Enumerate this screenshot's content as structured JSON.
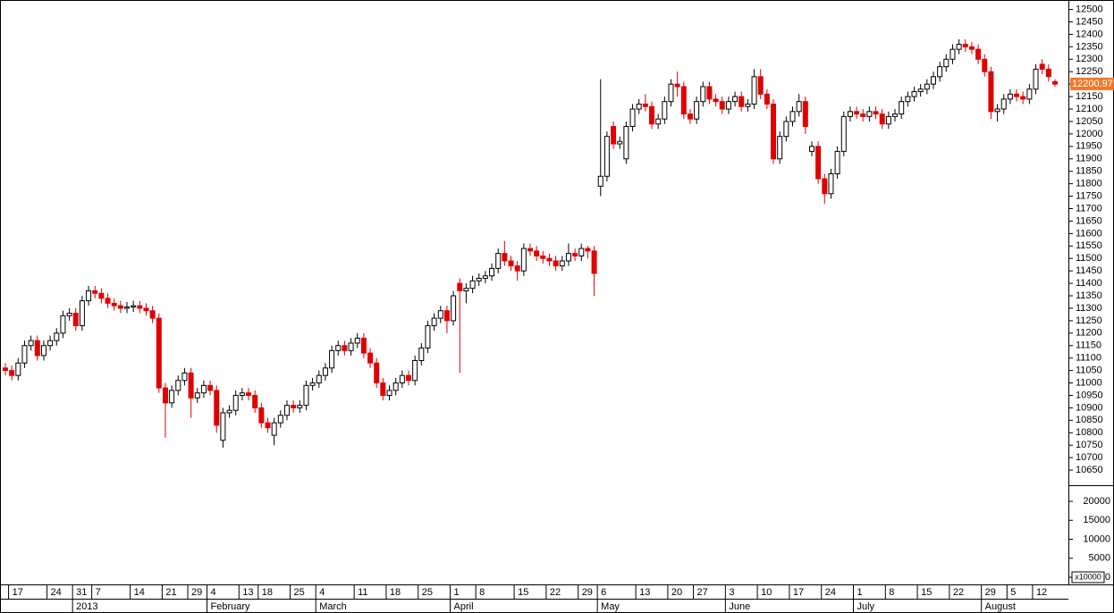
{
  "chart_data": {
    "type": "candlestick",
    "up_color": "#ffffff",
    "down_color": "#e00000",
    "last_color": "#f07828",
    "last_price": 12200.97,
    "ylim": [
      10600,
      12520
    ],
    "yticks": [
      12500,
      12450,
      12400,
      12350,
      12300,
      12250,
      12200,
      12150,
      12100,
      12050,
      12000,
      11950,
      11900,
      11850,
      11800,
      11750,
      11700,
      11650,
      11600,
      11550,
      11500,
      11450,
      11400,
      11350,
      11300,
      11250,
      11200,
      11150,
      11100,
      11050,
      11000,
      10950,
      10900,
      10850,
      10800,
      10750,
      10700,
      10650
    ],
    "volume_axis": {
      "label": "x10000",
      "ylim": [
        0,
        24000
      ],
      "yticks": [
        20000,
        15000,
        10000,
        5000,
        0
      ]
    },
    "categories": [
      null,
      "17",
      null,
      null,
      null,
      null,
      null,
      "24",
      null,
      null,
      null,
      "31",
      null,
      null,
      "7",
      null,
      null,
      null,
      null,
      null,
      "14",
      null,
      null,
      null,
      null,
      "21",
      null,
      null,
      null,
      "29",
      null,
      null,
      "4",
      null,
      null,
      null,
      null,
      "13",
      null,
      null,
      "18",
      null,
      null,
      null,
      null,
      "25",
      null,
      null,
      null,
      "4",
      null,
      null,
      null,
      null,
      null,
      "11",
      null,
      null,
      null,
      null,
      "18",
      null,
      null,
      null,
      null,
      "25",
      null,
      null,
      null,
      null,
      "1",
      null,
      null,
      null,
      "8",
      null,
      null,
      null,
      null,
      null,
      "15",
      null,
      null,
      null,
      null,
      "22",
      null,
      null,
      null,
      null,
      "29",
      null,
      null,
      "6",
      null,
      null,
      null,
      null,
      null,
      "13",
      null,
      null,
      null,
      null,
      "20",
      null,
      null,
      null,
      "27",
      null,
      null,
      null,
      null,
      "3",
      null,
      null,
      null,
      null,
      "10",
      null,
      null,
      null,
      null,
      "17",
      null,
      null,
      null,
      null,
      "24",
      null,
      null,
      null,
      null,
      "1",
      null,
      null,
      null,
      null,
      "8",
      null,
      null,
      null,
      null,
      "15",
      null,
      null,
      null,
      null,
      "22",
      null,
      null,
      null,
      null,
      "29",
      null,
      null,
      null,
      "5",
      null,
      null,
      null,
      "12",
      null,
      null,
      null
    ],
    "months": [
      null,
      null,
      null,
      null,
      null,
      null,
      null,
      null,
      null,
      null,
      null,
      "2013",
      null,
      null,
      null,
      null,
      null,
      null,
      null,
      null,
      null,
      null,
      null,
      null,
      null,
      null,
      null,
      null,
      null,
      null,
      null,
      null,
      "February",
      null,
      null,
      null,
      null,
      null,
      null,
      null,
      null,
      null,
      null,
      null,
      null,
      null,
      null,
      null,
      null,
      "March",
      null,
      null,
      null,
      null,
      null,
      null,
      null,
      null,
      null,
      null,
      null,
      null,
      null,
      null,
      null,
      null,
      null,
      null,
      null,
      null,
      "April",
      null,
      null,
      null,
      null,
      null,
      null,
      null,
      null,
      null,
      null,
      null,
      null,
      null,
      null,
      null,
      null,
      null,
      null,
      null,
      null,
      null,
      null,
      "May",
      null,
      null,
      null,
      null,
      null,
      null,
      null,
      null,
      null,
      null,
      null,
      null,
      null,
      null,
      null,
      null,
      null,
      null,
      null,
      "June",
      null,
      null,
      null,
      null,
      null,
      null,
      null,
      null,
      null,
      null,
      null,
      null,
      null,
      null,
      null,
      null,
      null,
      null,
      null,
      "July",
      null,
      null,
      null,
      null,
      null,
      null,
      null,
      null,
      null,
      null,
      null,
      null,
      null,
      null,
      null,
      null,
      null,
      null,
      null,
      "August",
      null,
      null,
      null,
      null,
      null,
      null,
      null,
      null,
      null,
      null,
      null
    ],
    "open": [
      11060,
      11050,
      11030,
      11080,
      11150,
      11170,
      11110,
      11150,
      11170,
      11200,
      11270,
      11280,
      11230,
      11330,
      11370,
      11360,
      11340,
      11320,
      11310,
      11300,
      11305,
      11310,
      11300,
      11290,
      11260,
      10980,
      10920,
      10970,
      11010,
      11040,
      10940,
      10960,
      10990,
      10970,
      10770,
      10880,
      10890,
      10950,
      10960,
      10950,
      10900,
      10840,
      10790,
      10840,
      10870,
      10910,
      10900,
      10910,
      10990,
      11000,
      11030,
      11060,
      11130,
      11150,
      11130,
      11160,
      11180,
      11120,
      11080,
      11000,
      10950,
      10970,
      11000,
      11030,
      11010,
      11090,
      11140,
      11230,
      11260,
      11290,
      11250,
      11400,
      11370,
      11380,
      11410,
      11420,
      11430,
      11460,
      11520,
      11490,
      11470,
      11450,
      11540,
      11530,
      11510,
      11500,
      11490,
      11470,
      11490,
      11520,
      11510,
      11540,
      11530,
      11790,
      11830,
      12030,
      11960,
      11900,
      12030,
      12100,
      12120,
      12110,
      12040,
      12060,
      12130,
      12200,
      12190,
      12080,
      12060,
      12130,
      12190,
      12140,
      12130,
      12100,
      12130,
      12150,
      12110,
      12120,
      12230,
      12160,
      12120,
      11900,
      11990,
      12050,
      12090,
      12130,
      11930,
      11950,
      11820,
      11760,
      11840,
      11930,
      12070,
      12090,
      12080,
      12070,
      12090,
      12080,
      12040,
      12070,
      12080,
      12130,
      12150,
      12170,
      12180,
      12200,
      12230,
      12270,
      12300,
      12340,
      12360,
      12350,
      12340,
      12300,
      12250,
      12090,
      12100,
      12140,
      12160,
      12150,
      12140,
      12180,
      12280,
      12260,
      12210
    ],
    "high": [
      11080,
      11070,
      11100,
      11170,
      11190,
      11190,
      11170,
      11190,
      11220,
      11290,
      11300,
      11300,
      11350,
      11390,
      11390,
      11380,
      11360,
      11340,
      11330,
      11325,
      11330,
      11330,
      11320,
      11310,
      11280,
      11000,
      10990,
      11030,
      11060,
      11060,
      10980,
      11010,
      11010,
      10990,
      10900,
      10910,
      10970,
      10980,
      10980,
      10970,
      10920,
      10860,
      10860,
      10890,
      10930,
      10930,
      10930,
      11010,
      11020,
      11050,
      11080,
      11150,
      11170,
      11170,
      11180,
      11200,
      11200,
      11140,
      11100,
      11020,
      10990,
      11020,
      11050,
      11050,
      11110,
      11160,
      11250,
      11280,
      11310,
      11310,
      11370,
      11420,
      11400,
      11430,
      11440,
      11450,
      11480,
      11540,
      11570,
      11510,
      11490,
      11560,
      11560,
      11550,
      11530,
      11520,
      11510,
      11510,
      11560,
      11540,
      11560,
      11550,
      11550,
      12220,
      12010,
      12050,
      11990,
      12050,
      12120,
      12140,
      12160,
      12130,
      12080,
      12150,
      12220,
      12250,
      12210,
      12100,
      12150,
      12210,
      12210,
      12160,
      12150,
      12150,
      12170,
      12170,
      12140,
      12260,
      12260,
      12180,
      12140,
      12010,
      12070,
      12110,
      12160,
      12150,
      11970,
      11970,
      11840,
      11860,
      11950,
      12090,
      12110,
      12110,
      12100,
      12110,
      12110,
      12100,
      12090,
      12100,
      12150,
      12170,
      12190,
      12200,
      12220,
      12250,
      12290,
      12320,
      12360,
      12380,
      12380,
      12370,
      12360,
      12320,
      12270,
      12120,
      12160,
      12180,
      12180,
      12170,
      12200,
      12280,
      12300,
      12280,
      12220
    ],
    "low": [
      11030,
      11010,
      11010,
      11060,
      11130,
      11090,
      11090,
      11130,
      11150,
      11180,
      11250,
      11210,
      11210,
      11310,
      11340,
      11320,
      11300,
      11290,
      11280,
      11280,
      11285,
      11280,
      11270,
      11240,
      10960,
      10780,
      10900,
      10950,
      10990,
      10860,
      10920,
      10940,
      10950,
      10800,
      10740,
      10860,
      10870,
      10930,
      10930,
      10880,
      10820,
      10800,
      10750,
      10820,
      10850,
      10880,
      10880,
      10890,
      10970,
      10980,
      11010,
      11040,
      11110,
      11110,
      11110,
      11140,
      11100,
      11060,
      10980,
      10930,
      10930,
      10950,
      10980,
      10990,
      10990,
      11070,
      11120,
      11210,
      11240,
      11200,
      11230,
      11040,
      11320,
      11360,
      11390,
      11400,
      11410,
      11440,
      11470,
      11450,
      11410,
      11430,
      11510,
      11490,
      11480,
      11470,
      11450,
      11450,
      11470,
      11490,
      11490,
      11500,
      11350,
      11750,
      11810,
      11940,
      11940,
      11880,
      12010,
      12080,
      12090,
      12020,
      12020,
      12040,
      12110,
      12150,
      12060,
      12040,
      12040,
      12110,
      12120,
      12110,
      12080,
      12080,
      12110,
      12090,
      12090,
      12100,
      12140,
      12100,
      11880,
      11880,
      11970,
      12030,
      12070,
      12000,
      11910,
      11800,
      11720,
      11740,
      11820,
      11910,
      12050,
      12060,
      12050,
      12050,
      12060,
      12020,
      12020,
      12050,
      12060,
      12110,
      12130,
      12150,
      12160,
      12180,
      12210,
      12250,
      12280,
      12320,
      12330,
      12320,
      12280,
      12230,
      12060,
      12050,
      12080,
      12120,
      12130,
      12120,
      12120,
      12160,
      12240,
      12210,
      12190
    ],
    "close": [
      11050,
      11030,
      11080,
      11150,
      11170,
      11110,
      11150,
      11170,
      11200,
      11270,
      11280,
      11230,
      11330,
      11370,
      11360,
      11340,
      11320,
      11310,
      11300,
      11305,
      11310,
      11300,
      11290,
      11260,
      10980,
      10920,
      10970,
      11010,
      11040,
      10940,
      10960,
      10990,
      10970,
      10830,
      10880,
      10890,
      10950,
      10960,
      10950,
      10900,
      10840,
      10820,
      10840,
      10870,
      10910,
      10900,
      10910,
      10990,
      11000,
      11030,
      11060,
      11130,
      11150,
      11130,
      11160,
      11180,
      11120,
      11080,
      11000,
      10950,
      10970,
      11000,
      11030,
      11010,
      11090,
      11140,
      11230,
      11260,
      11290,
      11250,
      11350,
      11370,
      11380,
      11410,
      11420,
      11430,
      11460,
      11520,
      11490,
      11470,
      11450,
      11540,
      11530,
      11510,
      11500,
      11490,
      11470,
      11490,
      11520,
      11510,
      11540,
      11530,
      11440,
      11830,
      11990,
      11960,
      11970,
      12030,
      12100,
      12120,
      12110,
      12040,
      12060,
      12130,
      12200,
      12190,
      12080,
      12060,
      12130,
      12190,
      12140,
      12130,
      12100,
      12130,
      12150,
      12110,
      12120,
      12230,
      12160,
      12120,
      11900,
      11990,
      12050,
      12090,
      12130,
      12030,
      11950,
      11820,
      11760,
      11840,
      11930,
      12070,
      12090,
      12080,
      12070,
      12090,
      12080,
      12040,
      12070,
      12080,
      12130,
      12150,
      12170,
      12180,
      12200,
      12230,
      12270,
      12300,
      12340,
      12360,
      12350,
      12340,
      12300,
      12250,
      12090,
      12100,
      12140,
      12160,
      12150,
      12140,
      12180,
      12260,
      12260,
      12230,
      12200
    ]
  }
}
